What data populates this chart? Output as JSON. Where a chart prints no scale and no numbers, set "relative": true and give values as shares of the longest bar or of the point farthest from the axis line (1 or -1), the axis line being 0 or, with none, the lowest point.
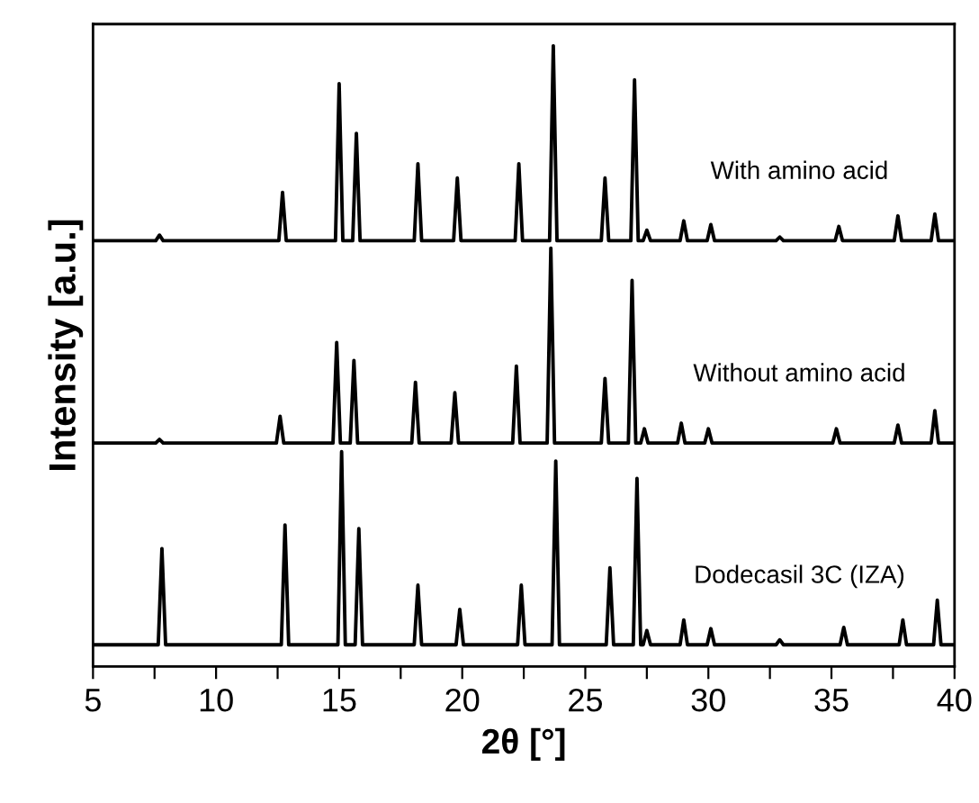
{
  "chart_data": {
    "type": "line",
    "relative": true,
    "xlabel": "2θ [°]",
    "ylabel": "Intensity [a.u.]",
    "xlim": [
      5,
      40
    ],
    "xticks": [
      5,
      {
        "value": 7.5,
        "label": null
      },
      10,
      {
        "value": 12.5,
        "label": null
      },
      15,
      {
        "value": 17.5,
        "label": null
      },
      20,
      {
        "value": 22.5,
        "label": null
      },
      25,
      {
        "value": 27.5,
        "label": null
      },
      30,
      {
        "value": 32.5,
        "label": null
      },
      35,
      {
        "value": 37.5,
        "label": null
      },
      40
    ],
    "tick_labels": "x",
    "grid": false,
    "legend": false,
    "marker": "none",
    "line_style": "solid",
    "series": [
      {
        "name": "With amino acid",
        "color": "#000000",
        "x": [
          5,
          7.55,
          7.7,
          7.85,
          12.55,
          12.7,
          12.85,
          14.85,
          15.0,
          15.15,
          15.55,
          15.7,
          15.85,
          18.05,
          18.2,
          18.35,
          19.65,
          19.8,
          19.95,
          22.15,
          22.3,
          22.45,
          23.55,
          23.7,
          23.85,
          25.65,
          25.8,
          25.95,
          26.85,
          27.0,
          27.15,
          27.35,
          27.5,
          27.65,
          28.85,
          29.0,
          29.15,
          29.95,
          30.1,
          30.25,
          32.75,
          32.9,
          33.05,
          35.15,
          35.3,
          35.45,
          37.55,
          37.7,
          37.85,
          39.05,
          39.2,
          39.35,
          40
        ],
        "values": [
          0.686,
          0.686,
          0.695,
          0.686,
          0.686,
          0.764,
          0.686,
          0.686,
          0.939,
          0.686,
          0.686,
          0.859,
          0.686,
          0.686,
          0.81,
          0.686,
          0.686,
          0.787,
          0.686,
          0.686,
          0.81,
          0.686,
          0.686,
          1.0,
          0.686,
          0.686,
          0.787,
          0.686,
          0.686,
          0.945,
          0.686,
          0.686,
          0.703,
          0.686,
          0.686,
          0.718,
          0.686,
          0.686,
          0.712,
          0.686,
          0.686,
          0.692,
          0.686,
          0.686,
          0.709,
          0.686,
          0.686,
          0.726,
          0.686,
          0.686,
          0.729,
          0.686,
          0.686
        ]
      },
      {
        "name": "Without amino acid",
        "color": "#000000",
        "x": [
          5,
          7.55,
          7.7,
          7.85,
          12.45,
          12.6,
          12.75,
          14.75,
          14.9,
          15.05,
          15.45,
          15.6,
          15.75,
          17.95,
          18.1,
          18.25,
          19.55,
          19.7,
          19.85,
          22.05,
          22.2,
          22.35,
          23.45,
          23.6,
          23.75,
          25.65,
          25.8,
          25.95,
          26.75,
          26.9,
          27.05,
          27.25,
          27.4,
          27.55,
          28.75,
          28.9,
          29.05,
          29.85,
          30.0,
          30.15,
          35.05,
          35.2,
          35.35,
          37.55,
          37.7,
          37.85,
          39.05,
          39.2,
          39.35,
          40
        ],
        "values": [
          0.36,
          0.36,
          0.366,
          0.36,
          0.36,
          0.403,
          0.36,
          0.36,
          0.522,
          0.36,
          0.36,
          0.493,
          0.36,
          0.36,
          0.458,
          0.36,
          0.36,
          0.441,
          0.36,
          0.36,
          0.484,
          0.36,
          0.36,
          0.674,
          0.36,
          0.36,
          0.464,
          0.36,
          0.36,
          0.622,
          0.36,
          0.36,
          0.383,
          0.36,
          0.36,
          0.392,
          0.36,
          0.36,
          0.383,
          0.36,
          0.36,
          0.383,
          0.36,
          0.36,
          0.389,
          0.36,
          0.36,
          0.412,
          0.36,
          0.36
        ]
      },
      {
        "name": "Dodecasil 3C (IZA)",
        "color": "#000000",
        "x": [
          5,
          7.65,
          7.8,
          7.95,
          12.65,
          12.8,
          12.95,
          14.95,
          15.1,
          15.25,
          15.65,
          15.8,
          15.95,
          18.05,
          18.2,
          18.35,
          19.75,
          19.9,
          20.05,
          22.25,
          22.4,
          22.55,
          23.65,
          23.8,
          23.95,
          25.85,
          26.0,
          26.15,
          26.95,
          27.1,
          27.25,
          27.35,
          27.5,
          27.65,
          28.85,
          29.0,
          29.15,
          29.95,
          30.1,
          30.25,
          32.75,
          32.9,
          33.05,
          35.35,
          35.5,
          35.65,
          37.75,
          37.9,
          38.05,
          39.15,
          39.3,
          39.45,
          40
        ],
        "values": [
          0.035,
          0.035,
          0.19,
          0.035,
          0.035,
          0.228,
          0.035,
          0.035,
          0.346,
          0.035,
          0.035,
          0.222,
          0.035,
          0.035,
          0.131,
          0.035,
          0.035,
          0.092,
          0.035,
          0.035,
          0.131,
          0.035,
          0.035,
          0.331,
          0.035,
          0.035,
          0.159,
          0.035,
          0.035,
          0.303,
          0.035,
          0.035,
          0.058,
          0.035,
          0.035,
          0.075,
          0.035,
          0.035,
          0.061,
          0.035,
          0.035,
          0.043,
          0.035,
          0.035,
          0.063,
          0.035,
          0.035,
          0.075,
          0.035,
          0.035,
          0.107,
          0.035,
          0.035
        ]
      }
    ]
  }
}
